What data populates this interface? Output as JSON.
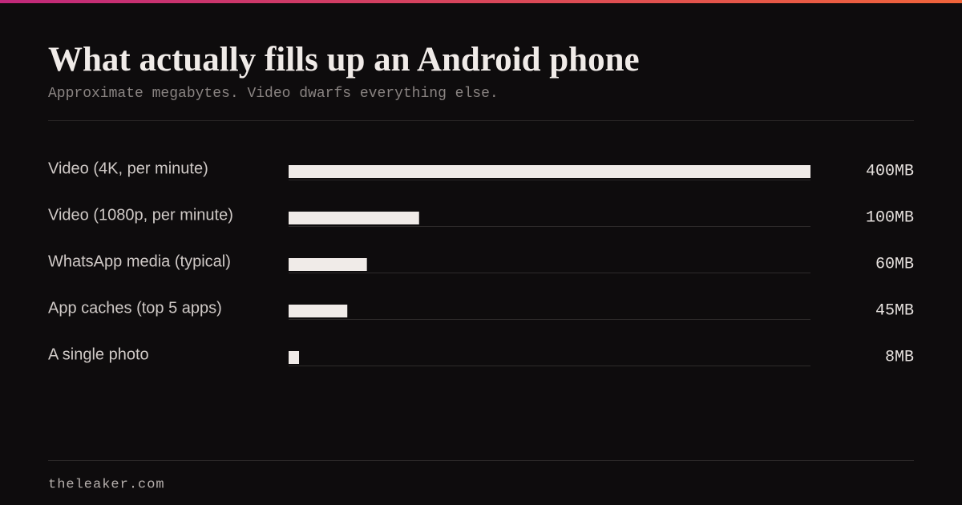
{
  "chart_data": {
    "type": "bar",
    "orientation": "horizontal",
    "title": "What actually fills up an Android phone",
    "subtitle": "Approximate megabytes. Video dwarfs everything else.",
    "categories": [
      "Video (4K, per minute)",
      "Video (1080p, per minute)",
      "WhatsApp media (typical)",
      "App caches (top 5 apps)",
      "A single photo"
    ],
    "values": [
      400,
      100,
      60,
      45,
      8
    ],
    "value_labels": [
      "400MB",
      "100MB",
      "60MB",
      "45MB",
      "8MB"
    ],
    "color": "#f0ebe8",
    "xlim": [
      0,
      400
    ]
  },
  "footer": "theleaker.com"
}
